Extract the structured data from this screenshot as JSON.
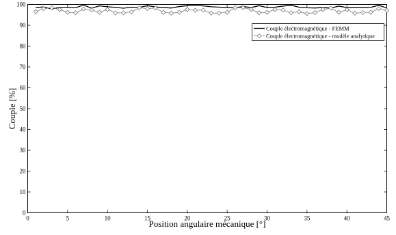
{
  "chart_data": {
    "type": "line",
    "title": "",
    "xlabel": "Position angulaire mécanique [°]",
    "ylabel": "Couple [%]",
    "xlim": [
      0,
      45
    ],
    "ylim": [
      0,
      100
    ],
    "xticks": [
      "0",
      "5",
      "10",
      "15",
      "20",
      "25",
      "30",
      "35",
      "40",
      "45"
    ],
    "yticks": [
      "0",
      "10",
      "20",
      "30",
      "40",
      "50",
      "60",
      "70",
      "80",
      "90",
      "100"
    ],
    "grid": false,
    "legend_position": "top-right",
    "series": [
      {
        "name": "Couple électromagnétique - FEMM",
        "color": "#000000",
        "marker": "none",
        "x": [
          1,
          2,
          3,
          4,
          5,
          6,
          7,
          8,
          9,
          10,
          11,
          12,
          13,
          14,
          15,
          16,
          17,
          18,
          19,
          20,
          21,
          22,
          23,
          24,
          25,
          26,
          27,
          28,
          29,
          30,
          31,
          32,
          33,
          34,
          35,
          36,
          37,
          38,
          39,
          40,
          41,
          42,
          43,
          44,
          45
        ],
        "values": [
          98.5,
          98.8,
          97.8,
          98.6,
          98.6,
          98.4,
          99.7,
          98.2,
          99.3,
          98.9,
          98.6,
          98.2,
          98.7,
          98.6,
          99.4,
          98.8,
          98.5,
          98.3,
          99.0,
          99.4,
          99.6,
          99.3,
          98.9,
          98.7,
          98.5,
          98.4,
          99.0,
          98.5,
          99.4,
          98.5,
          98.7,
          99.2,
          99.6,
          98.7,
          98.4,
          98.3,
          98.5,
          98.3,
          99.2,
          98.5,
          98.6,
          98.5,
          98.6,
          99.6,
          98.3
        ]
      },
      {
        "name": "Couple électromagnétique - modèle analytique",
        "color": "#777777",
        "marker": "diamond",
        "x": [
          1,
          2,
          3,
          4,
          5,
          6,
          7,
          8,
          9,
          10,
          11,
          12,
          13,
          14,
          15,
          16,
          17,
          18,
          19,
          20,
          21,
          22,
          23,
          24,
          25,
          26,
          27,
          28,
          29,
          30,
          31,
          32,
          33,
          34,
          35,
          36,
          37,
          38,
          39,
          40,
          41,
          42,
          43,
          44,
          45
        ],
        "values": [
          96.5,
          98.0,
          98.4,
          97.6,
          96.2,
          96.0,
          97.8,
          97.3,
          96.2,
          97.6,
          95.9,
          96.0,
          96.4,
          98.4,
          98.0,
          98.3,
          96.2,
          95.8,
          96.2,
          97.6,
          97.2,
          97.3,
          95.8,
          95.9,
          96.2,
          98.4,
          98.5,
          97.6,
          96.0,
          96.2,
          97.6,
          97.3,
          96.0,
          96.5,
          95.6,
          96.1,
          97.6,
          98.2,
          96.2,
          97.5,
          95.8,
          96.1,
          96.2,
          98.0,
          97.2
        ]
      }
    ]
  }
}
